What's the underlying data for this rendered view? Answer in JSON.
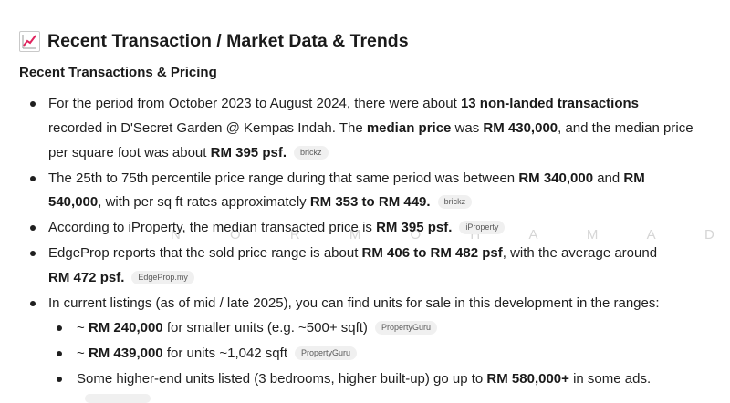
{
  "heading": {
    "icon": "chart-increasing-icon",
    "title": "Recent Transaction / Market Data & Trends"
  },
  "subheading": "Recent Transactions & Pricing",
  "watermark": "N O R   M O H A M A D",
  "b1": {
    "l1a": "For the period from October 2023 to August 2024, there were about ",
    "l1b": "13 non-landed transactions",
    "l2a": "recorded in D'Secret Garden @ Kempas Indah. The ",
    "l2b": "median price",
    "l2c": " was ",
    "l2d": "RM 430,000",
    "l2e": ", and the median price",
    "l3a": "per square foot was about ",
    "l3b": "RM 395 psf.",
    "chip": "brickz"
  },
  "b2": {
    "l1a": "The 25th to 75th percentile price range during that same period was between ",
    "l1b": "RM 340,000",
    "l1c": " and ",
    "l1d": "RM",
    "l2a": "540,000",
    "l2b": ", with per sq ft rates approximately ",
    "l2c": "RM 353 to RM 449.",
    "chip": "brickz"
  },
  "b3": {
    "a": "According to iProperty, the median transacted price is ",
    "b": "RM 395 psf.",
    "chip": "iProperty"
  },
  "b4": {
    "l1a": "EdgeProp reports that the sold price range is about ",
    "l1b": "RM 406 to RM 482 psf",
    "l1c": ", with the average around",
    "l2a": "RM 472 psf.",
    "chip": "EdgeProp.my"
  },
  "b5": {
    "text": "In current listings (as of mid / late 2025), you can find units for sale in this development in the ranges:"
  },
  "s1": {
    "a": "~ ",
    "b": "RM 240,000",
    "c": " for smaller units (e.g. ~500+ sqft)",
    "chip": "PropertyGuru"
  },
  "s2": {
    "a": "~ ",
    "b": "RM 439,000",
    "c": " for units ~1,042 sqft",
    "chip": "PropertyGuru"
  },
  "s3": {
    "a": "Some higher-end units listed (3 bedrooms, higher built-up) go up to ",
    "b": "RM 580,000+",
    "c": " in some ads."
  }
}
